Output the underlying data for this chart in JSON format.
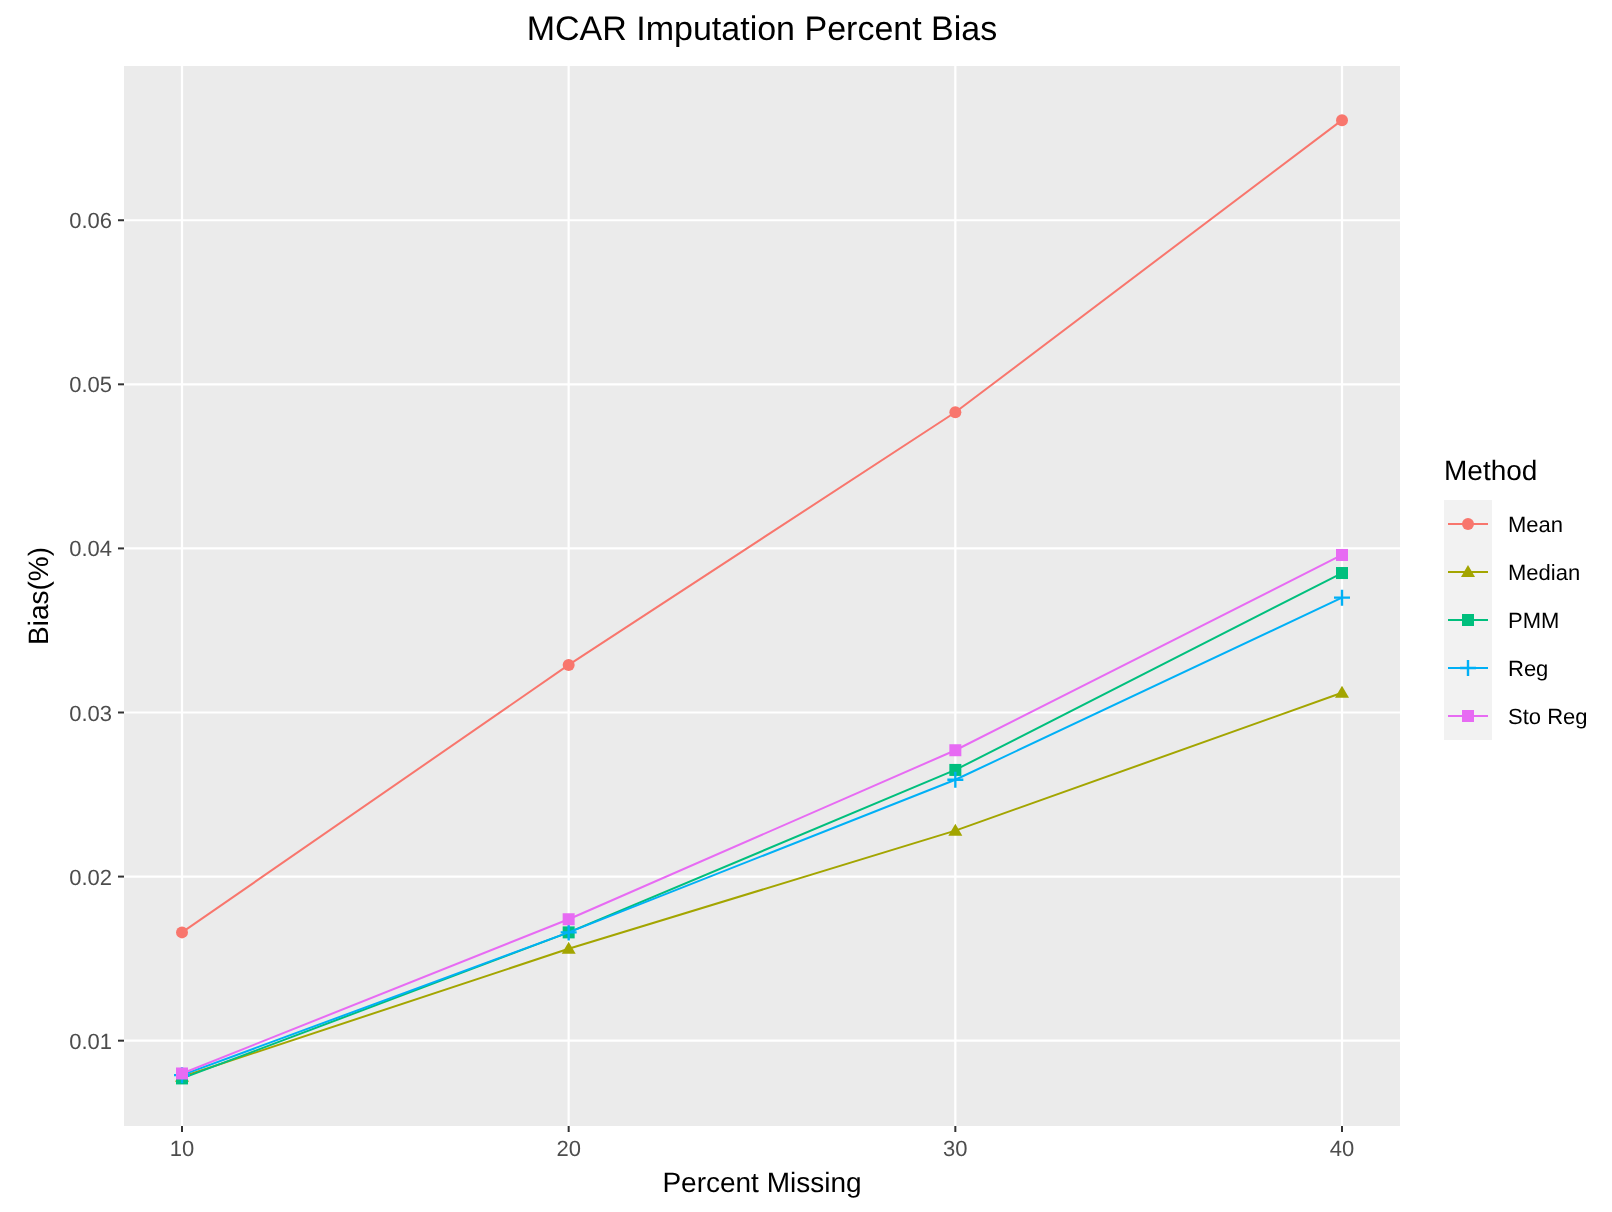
{
  "chart_data": {
    "type": "line",
    "title": "MCAR Imputation Percent Bias",
    "xlabel": "Percent Missing",
    "ylabel": "Bias(%)",
    "legend_title": "Method",
    "x": [
      10,
      20,
      30,
      40
    ],
    "series": [
      {
        "name": "Mean",
        "color": "#f8766d",
        "marker": "circle",
        "values": [
          0.0166,
          0.0329,
          0.0483,
          0.0661
        ]
      },
      {
        "name": "Median",
        "color": "#a3a500",
        "marker": "triangle",
        "values": [
          0.0078,
          0.0156,
          0.0228,
          0.0312
        ]
      },
      {
        "name": "PMM",
        "color": "#00bf7d",
        "marker": "square",
        "values": [
          0.0077,
          0.0166,
          0.0265,
          0.0385
        ]
      },
      {
        "name": "Reg",
        "color": "#00b0f6",
        "marker": "cross",
        "values": [
          0.0079,
          0.0166,
          0.0259,
          0.037
        ]
      },
      {
        "name": "Sto Reg",
        "color": "#e76bf3",
        "marker": "square",
        "values": [
          0.008,
          0.0174,
          0.0277,
          0.0396
        ]
      }
    ],
    "xlim": [
      8.5,
      41.5
    ],
    "xticks": [
      10,
      20,
      30,
      40
    ],
    "ylim": [
      0.0048,
      0.0694
    ],
    "yticks": [
      0.01,
      0.02,
      0.03,
      0.04,
      0.05,
      0.06
    ],
    "grid": true,
    "legend": "right",
    "line_style": "solid"
  }
}
